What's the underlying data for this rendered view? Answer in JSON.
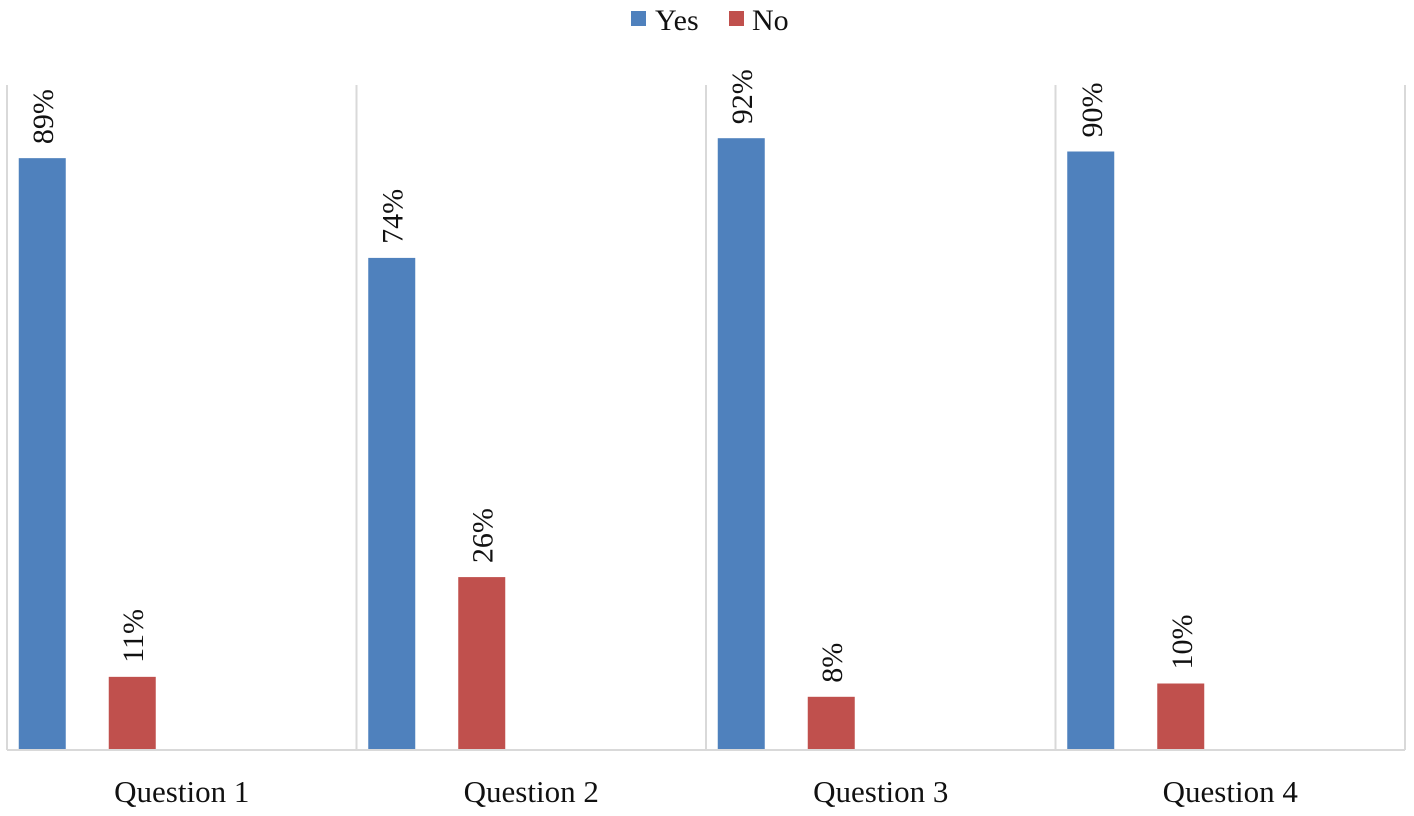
{
  "chart_data": {
    "type": "bar",
    "categories": [
      "Question 1",
      "Question 2",
      "Question 3",
      "Question 4"
    ],
    "series": [
      {
        "name": "Yes",
        "color": "#4f81bd",
        "values": [
          89,
          74,
          92,
          90
        ],
        "labels": [
          "89%",
          "74%",
          "92%",
          "90%"
        ]
      },
      {
        "name": "No",
        "color": "#c0504d",
        "values": [
          11,
          26,
          8,
          10
        ],
        "labels": [
          "11%",
          "26%",
          "8%",
          "10%"
        ]
      }
    ],
    "title": "",
    "xlabel": "",
    "ylabel": "",
    "ylim": [
      0,
      100
    ],
    "legend": "top-center",
    "grid": "vertical category separators"
  }
}
